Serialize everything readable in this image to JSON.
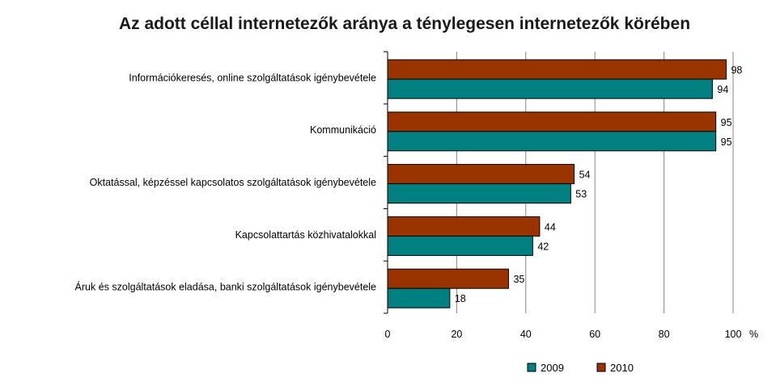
{
  "chart_data": {
    "type": "bar",
    "orientation": "horizontal",
    "title": "Az adott céllal internetezők aránya a ténylegesen internetezők körében",
    "categories": [
      "Információkeresés, online szolgáltatások igénybevétele",
      "Kommunikáció",
      "Oktatással, képzéssel kapcsolatos szolgáltatások igénybevétele",
      "Kapcsolattartás közhivatalokkal",
      "Áruk és szolgáltatások eladása, banki szolgáltatások igénybevétele"
    ],
    "series": [
      {
        "name": "2010",
        "color": "#993300",
        "values": [
          98,
          95,
          54,
          44,
          35
        ]
      },
      {
        "name": "2009",
        "color": "#008080",
        "values": [
          94,
          95,
          53,
          42,
          18
        ]
      }
    ],
    "xlim": [
      0,
      100
    ],
    "xticks": [
      0,
      20,
      40,
      60,
      80,
      100
    ],
    "x_unit": "%",
    "grid": true,
    "legend": {
      "position": "bottom-center",
      "order": [
        "2009",
        "2010"
      ]
    }
  }
}
